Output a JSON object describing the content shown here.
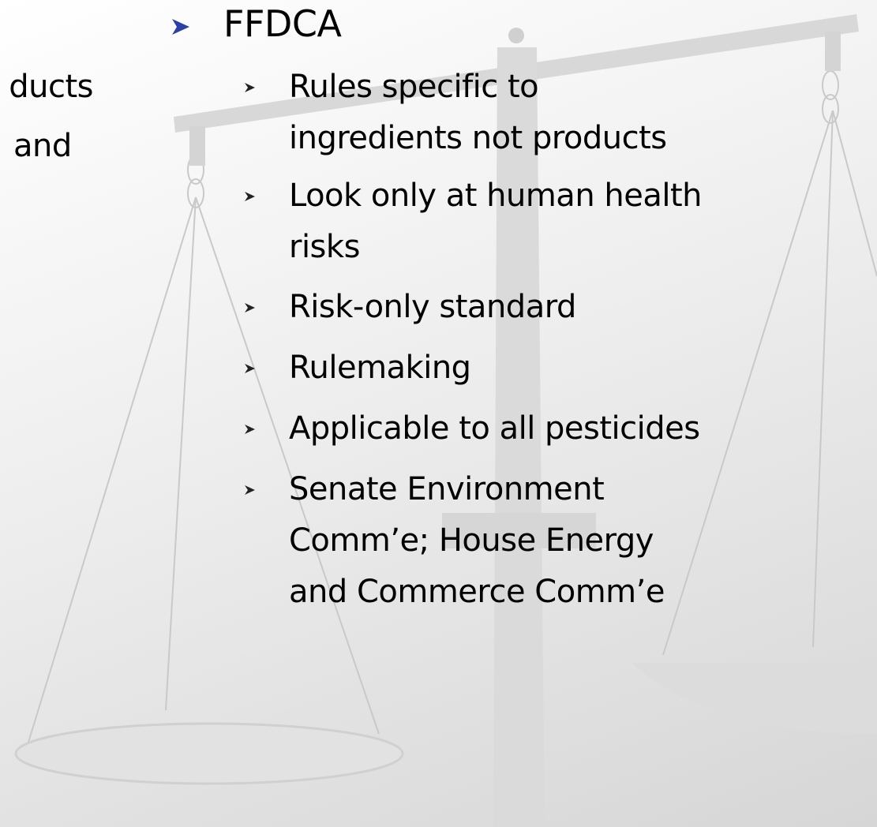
{
  "left_column": {
    "lines": [
      "ducts",
      "and"
    ]
  },
  "heading": "FFDCA",
  "items": [
    [
      "Rules specific to",
      "ingredients not products"
    ],
    [
      "Look only at human health",
      "risks"
    ],
    [
      "Risk-only standard"
    ],
    [
      "Rulemaking"
    ],
    [
      "Applicable to all pesticides"
    ],
    [
      "Senate Environment",
      "Comm’e; House Energy",
      "and Commerce Comm’e"
    ]
  ]
}
